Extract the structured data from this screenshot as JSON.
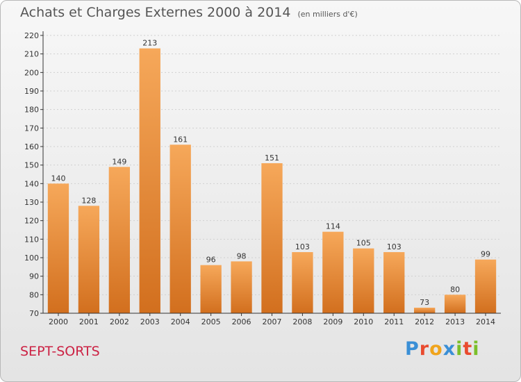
{
  "header": {
    "title": "Achats et Charges Externes 2000 à 2014",
    "subtitle": "(en milliers d'€)"
  },
  "footer": {
    "commune": "SEPT-SORTS",
    "logo_text": "Proxiti"
  },
  "colors": {
    "bar_light": "#f6a85a",
    "bar_dark": "#d26f1e",
    "axis": "#333333",
    "grid": "#d0d0d0",
    "commune_text": "#cc2244"
  },
  "chart_data": {
    "type": "bar",
    "title": "Achats et Charges Externes 2000 à 2014",
    "subtitle": "(en milliers d'€)",
    "categories": [
      "2000",
      "2001",
      "2002",
      "2003",
      "2004",
      "2005",
      "2006",
      "2007",
      "2008",
      "2009",
      "2010",
      "2011",
      "2012",
      "2013",
      "2014"
    ],
    "values": [
      140,
      128,
      149,
      213,
      161,
      96,
      98,
      151,
      103,
      114,
      105,
      103,
      73,
      80,
      99
    ],
    "xlabel": "",
    "ylabel": "",
    "ylim": [
      70,
      220
    ],
    "yticks": [
      70,
      80,
      90,
      100,
      110,
      120,
      130,
      140,
      150,
      160,
      170,
      180,
      190,
      200,
      210,
      220
    ],
    "grid": true,
    "data_labels": true
  }
}
